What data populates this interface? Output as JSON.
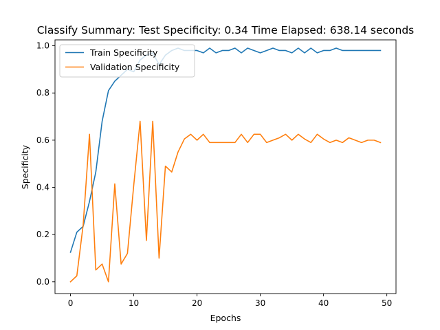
{
  "chart_data": {
    "type": "line",
    "title": "Classify Summary: Test Specificity: 0.34 Time Elapsed: 638.14 seconds",
    "xlabel": "Epochs",
    "ylabel": "Specificity",
    "xlim": [
      -2.45,
      51.45
    ],
    "ylim": [
      -0.05,
      1.025
    ],
    "xticks": [
      0,
      10,
      20,
      30,
      40,
      50
    ],
    "yticks": [
      0.0,
      0.2,
      0.4,
      0.6,
      0.8,
      1.0
    ],
    "xtick_labels": [
      "0",
      "10",
      "20",
      "30",
      "40",
      "50"
    ],
    "ytick_labels": [
      "0.0",
      "0.2",
      "0.4",
      "0.6",
      "0.8",
      "1.0"
    ],
    "grid": false,
    "legend_position": "top-left",
    "x": [
      0,
      1,
      2,
      3,
      4,
      5,
      6,
      7,
      8,
      9,
      10,
      11,
      12,
      13,
      14,
      15,
      16,
      17,
      18,
      19,
      20,
      21,
      22,
      23,
      24,
      25,
      26,
      27,
      28,
      29,
      30,
      31,
      32,
      33,
      34,
      35,
      36,
      37,
      38,
      39,
      40,
      41,
      42,
      43,
      44,
      45,
      46,
      47,
      48,
      49
    ],
    "series": [
      {
        "name": "Train Specificity",
        "color": "#1f77b4",
        "values": [
          0.125,
          0.21,
          0.235,
          0.34,
          0.465,
          0.68,
          0.81,
          0.85,
          0.875,
          0.9,
          0.89,
          0.94,
          0.96,
          0.97,
          0.92,
          0.96,
          0.98,
          0.99,
          0.98,
          0.98,
          0.98,
          0.97,
          0.99,
          0.97,
          0.98,
          0.98,
          0.99,
          0.97,
          0.99,
          0.98,
          0.97,
          0.98,
          0.99,
          0.98,
          0.98,
          0.97,
          0.99,
          0.97,
          0.99,
          0.97,
          0.98,
          0.98,
          0.99,
          0.98,
          0.98,
          0.98,
          0.98,
          0.98,
          0.98,
          0.98
        ]
      },
      {
        "name": "Validation Specificity",
        "color": "#ff7f0e",
        "values": [
          0.0,
          0.025,
          0.24,
          0.625,
          0.05,
          0.075,
          0.0,
          0.415,
          0.075,
          0.12,
          0.41,
          0.68,
          0.175,
          0.68,
          0.1,
          0.49,
          0.465,
          0.55,
          0.605,
          0.625,
          0.6,
          0.625,
          0.59,
          0.59,
          0.59,
          0.59,
          0.59,
          0.625,
          0.59,
          0.625,
          0.625,
          0.59,
          0.6,
          0.61,
          0.625,
          0.6,
          0.625,
          0.605,
          0.59,
          0.625,
          0.605,
          0.59,
          0.6,
          0.59,
          0.61,
          0.6,
          0.59,
          0.6,
          0.6,
          0.59
        ]
      }
    ]
  }
}
